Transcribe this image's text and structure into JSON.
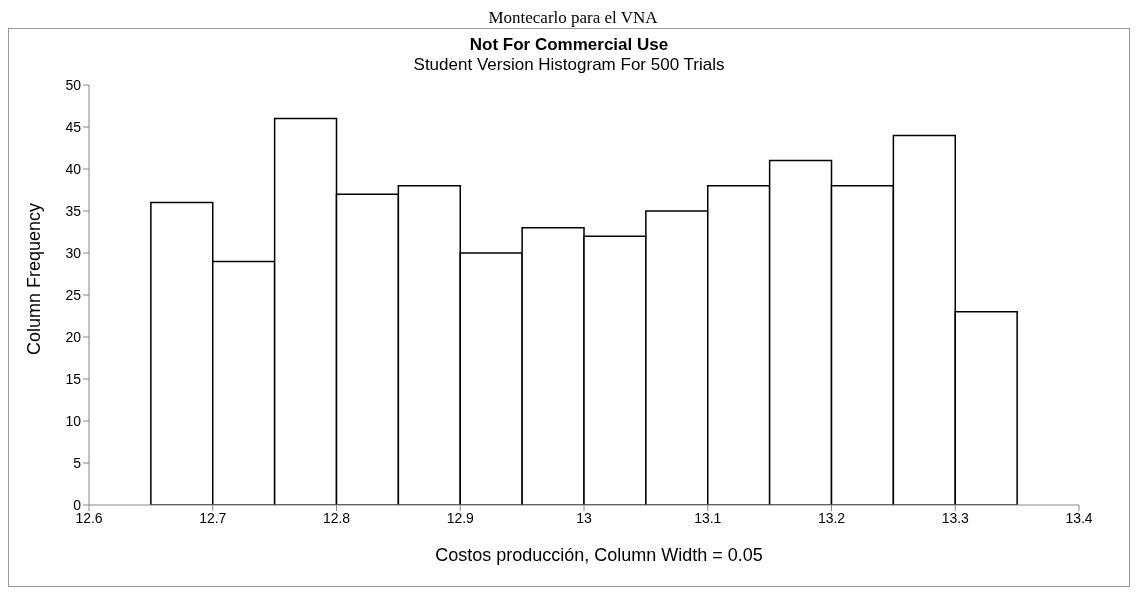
{
  "chart_data": {
    "type": "histogram",
    "title": "Not For Commercial Use",
    "subtitle": "Student Version Histogram For 500 Trials",
    "annotations": [
      "Montecarlo para el VNA"
    ],
    "xlabel": "Costos producción, Column Width = 0.05",
    "ylabel": "Column Frequency",
    "bins": [
      12.65,
      12.7,
      12.75,
      12.8,
      12.85,
      12.9,
      12.95,
      13.0,
      13.05,
      13.1,
      13.15,
      13.2,
      13.25,
      13.3,
      13.35
    ],
    "values": [
      36,
      29,
      46,
      37,
      38,
      30,
      33,
      32,
      35,
      38,
      41,
      38,
      44,
      23
    ],
    "color": "#ffffff",
    "xlim": [
      12.6,
      13.4
    ],
    "xticks": [
      12.6,
      12.7,
      12.8,
      12.9,
      13,
      13.1,
      13.2,
      13.3,
      13.4
    ],
    "ylim": [
      0,
      50
    ],
    "yticks": [
      0,
      5,
      10,
      15,
      20,
      25,
      30,
      35,
      40,
      45,
      50
    ],
    "grid": false
  }
}
